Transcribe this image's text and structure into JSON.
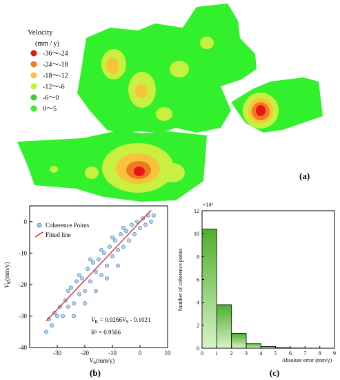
{
  "panels": {
    "a": {
      "label": "(a)",
      "legend_title_1": "Velocity",
      "legend_title_2": "(mm / y)",
      "legend": [
        {
          "label": "-36〜-24",
          "color": "#e8141a"
        },
        {
          "label": "-24〜-18",
          "color": "#f07a1e"
        },
        {
          "label": "-18〜-12",
          "color": "#f8c23a"
        },
        {
          "label": "-12〜-6",
          "color": "#c8f040"
        },
        {
          "label": "-6〜0",
          "color": "#3ecf2a"
        },
        {
          "label": "0〜5",
          "color": "#32f02c"
        }
      ]
    },
    "b": {
      "label": "(b)"
    },
    "c": {
      "label": "(c)"
    }
  },
  "chart_data": [
    {
      "type": "scatter",
      "panel": "b",
      "xlabel_main": "V",
      "xlabel_sub": "S",
      "xlabel_unit": "(mm/y)",
      "ylabel_main": "V",
      "ylabel_sub": "K",
      "ylabel_unit": "(mm/y)",
      "xlim": [
        -40,
        10
      ],
      "ylim": [
        -40,
        5
      ],
      "xticks": [
        -30,
        -20,
        -10,
        0,
        10
      ],
      "yticks": [
        -40,
        -30,
        -20,
        -10,
        0
      ],
      "legend_position": "top-left",
      "series": [
        {
          "name": "Coherence Points",
          "color": "#3b82c4",
          "kind": "points",
          "points": [
            [
              -34,
              -35
            ],
            [
              -33,
              -31
            ],
            [
              -32,
              -33
            ],
            [
              -31,
              -29
            ],
            [
              -30,
              -30
            ],
            [
              -29,
              -27
            ],
            [
              -28,
              -30
            ],
            [
              -27,
              -25
            ],
            [
              -26,
              -27
            ],
            [
              -25,
              -21
            ],
            [
              -24,
              -26
            ],
            [
              -23,
              -19
            ],
            [
              -22,
              -23
            ],
            [
              -21,
              -18
            ],
            [
              -20,
              -22
            ],
            [
              -19,
              -15
            ],
            [
              -18,
              -19
            ],
            [
              -17,
              -13
            ],
            [
              -16,
              -16
            ],
            [
              -15,
              -12
            ],
            [
              -14,
              -17
            ],
            [
              -13,
              -10
            ],
            [
              -12,
              -14
            ],
            [
              -11,
              -8
            ],
            [
              -10,
              -11
            ],
            [
              -9,
              -6
            ],
            [
              -8,
              -9
            ],
            [
              -7,
              -4
            ],
            [
              -6,
              -8
            ],
            [
              -5,
              -3
            ],
            [
              -4,
              -6
            ],
            [
              -3,
              -1
            ],
            [
              -2,
              -4
            ],
            [
              -1,
              0
            ],
            [
              0,
              -2
            ],
            [
              1,
              1
            ],
            [
              2,
              -1
            ],
            [
              3,
              2
            ],
            [
              4,
              0
            ],
            [
              5,
              2
            ],
            [
              -6,
              -2
            ],
            [
              -10,
              -5
            ],
            [
              -14,
              -9
            ],
            [
              -18,
              -12
            ],
            [
              -22,
              -17
            ],
            [
              -26,
              -22
            ],
            [
              -8,
              -14
            ],
            [
              -12,
              -18
            ],
            [
              -16,
              -22
            ],
            [
              -20,
              -26
            ],
            [
              -24,
              -30
            ]
          ]
        },
        {
          "name": "Fitted line",
          "color": "#e0252a",
          "kind": "line",
          "points": [
            [
              -34,
              -31.6
            ],
            [
              4,
              3.6
            ]
          ]
        }
      ],
      "annotations": {
        "eq_lhs_main": "V",
        "eq_lhs_sub": "K",
        "eq_mid": " = 0.9266",
        "eq_rhs_main": "V",
        "eq_rhs_sub": "S",
        "eq_tail": " - 0.1021",
        "r2": "R² = 0.9566"
      }
    },
    {
      "type": "bar",
      "panel": "c",
      "xlabel": "Absolute error (mm/y)",
      "ylabel": "Number of coherence points",
      "multiplier": "×10³",
      "xlim": [
        0,
        9
      ],
      "ylim": [
        0,
        12
      ],
      "xticks": [
        0,
        1,
        2,
        3,
        4,
        5,
        6,
        7,
        8,
        9
      ],
      "yticks": [
        0,
        2,
        4,
        6,
        8,
        10,
        12
      ],
      "bin_edges": [
        0,
        1,
        2,
        3,
        4,
        5,
        6,
        7,
        8,
        9
      ],
      "values": [
        10.4,
        3.8,
        1.3,
        0.4,
        0.15,
        0.05,
        0.02,
        0.01,
        0.0
      ],
      "color": "#5dc23b"
    }
  ]
}
